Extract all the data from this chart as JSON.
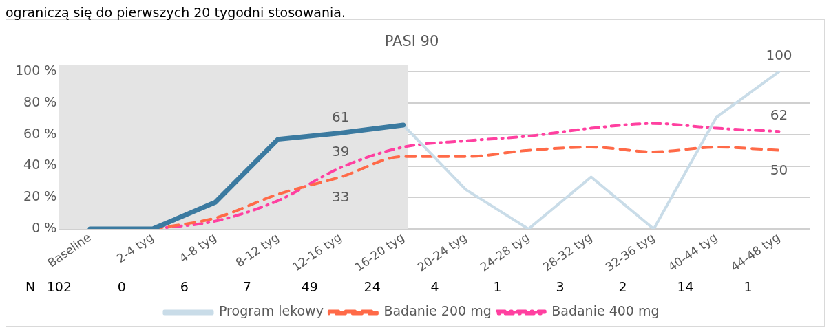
{
  "chart_data": {
    "type": "line",
    "title": "PASI 90",
    "subtitle": "ograniczą się do pierwszych 20 tygodni stosowania.",
    "categories": [
      "Baseline",
      "2-4 tyg",
      "4-8 tyg",
      "8-12 tyg",
      "12-16 tyg",
      "16-20 tyg",
      "20-24 tyg",
      "24-28 tyg",
      "28-32 tyg",
      "32-36 tyg",
      "40-44 tyg",
      "44-48 tyg"
    ],
    "series": [
      {
        "color": "#3b7aa0",
        "line_style": "solid",
        "values": [
          0,
          0,
          17,
          57,
          61,
          66,
          null,
          null,
          null,
          null,
          null,
          null
        ],
        "value_labels": [
          null,
          null,
          null,
          null,
          "61",
          null,
          null,
          null,
          null,
          null,
          null,
          null
        ]
      },
      {
        "name": "Program lekowy",
        "color": "#c9dce8",
        "line_style": "solid",
        "values": [
          null,
          null,
          null,
          null,
          null,
          66,
          25,
          0,
          33,
          0,
          71,
          100
        ],
        "value_labels": [
          null,
          null,
          null,
          null,
          null,
          null,
          null,
          null,
          null,
          null,
          null,
          "100"
        ]
      },
      {
        "name": "Badanie 200 mg",
        "color": "#ff6a48",
        "line_style": "dashed",
        "values": [
          null,
          0,
          7,
          22,
          33,
          46,
          46,
          50,
          52,
          49,
          52,
          50
        ],
        "value_labels": [
          null,
          null,
          null,
          null,
          "33",
          null,
          null,
          null,
          null,
          null,
          null,
          "50"
        ]
      },
      {
        "name": "Badanie 400 mg",
        "color": "#ff40a0",
        "line_style": "dashdot",
        "values": [
          null,
          0,
          5,
          18,
          39,
          52,
          56,
          59,
          64,
          67,
          64,
          62
        ],
        "value_labels": [
          null,
          null,
          null,
          null,
          "39",
          null,
          null,
          null,
          null,
          null,
          null,
          "62"
        ]
      }
    ],
    "ylim": [
      0,
      100
    ],
    "yticks": [
      {
        "value": 0,
        "label": "0 %"
      },
      {
        "value": 20,
        "label": "20 %"
      },
      {
        "value": 40,
        "label": "40 %"
      },
      {
        "value": 60,
        "label": "60 %"
      },
      {
        "value": 80,
        "label": "80 %"
      },
      {
        "value": 100,
        "label": "100 %"
      }
    ],
    "bands": [
      {
        "axis": "x",
        "from": "Baseline",
        "to": "16-20 tyg",
        "color": "#e4e4e4"
      }
    ],
    "grid": "y",
    "legend": "bottom",
    "marker": "none",
    "annotations": [
      "N",
      "102",
      "0",
      "6",
      "7",
      "49",
      "24",
      "4",
      "1",
      "3",
      "2",
      "14",
      "1"
    ]
  }
}
